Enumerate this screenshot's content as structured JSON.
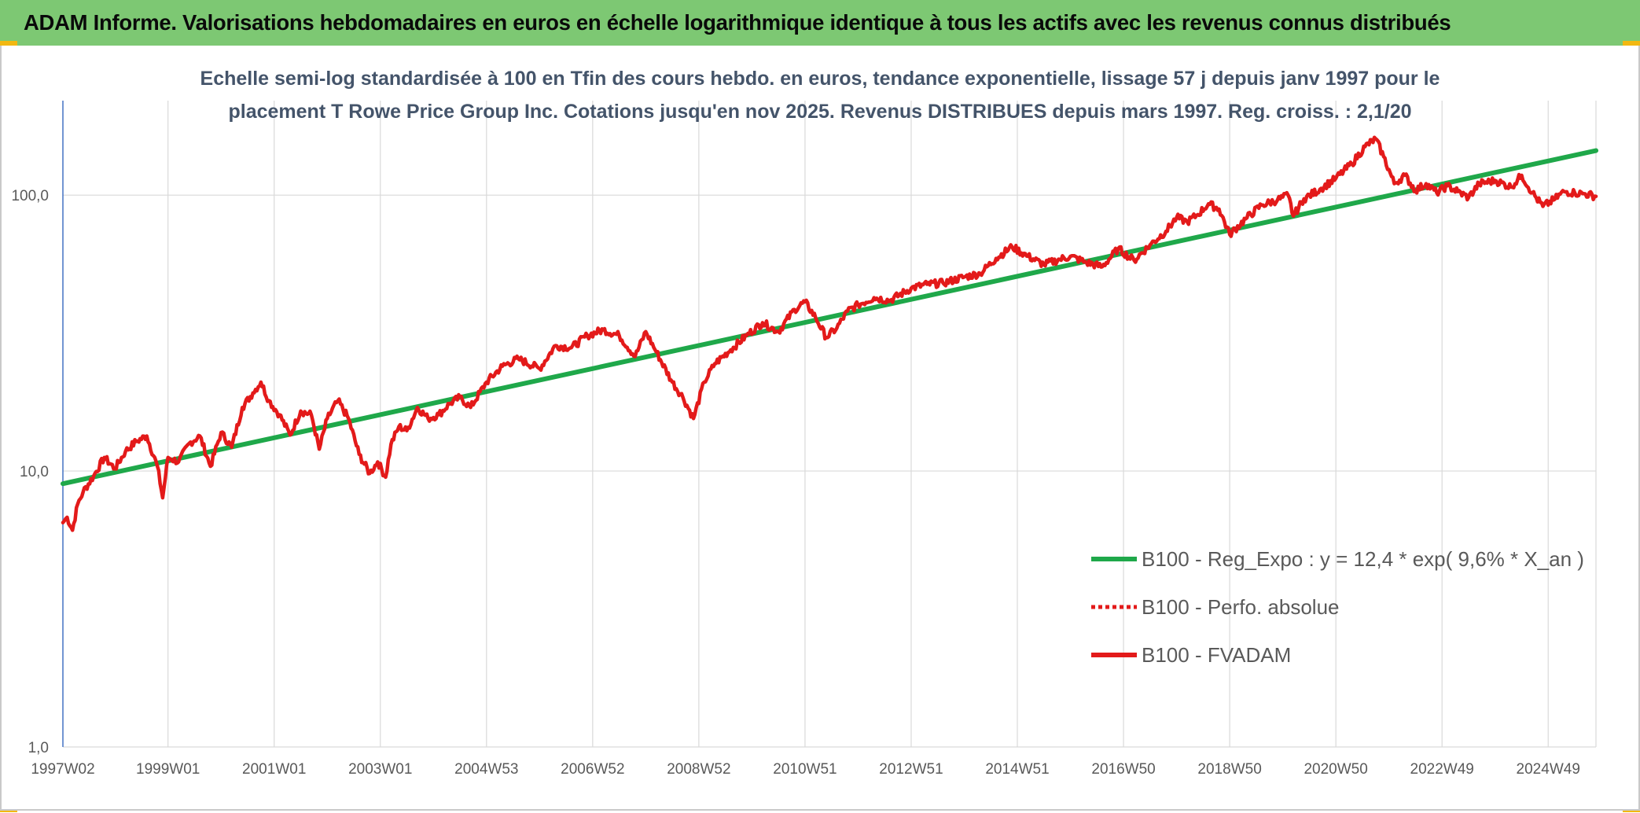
{
  "header": {
    "title": "ADAM Informe. Valorisations hebdomadaires en euros en échelle logarithmique identique à tous les actifs avec les revenus connus distribués"
  },
  "colors": {
    "banner": "#7dc873",
    "corner_accent": "#f2b811",
    "regression": "#1fa84a",
    "fvadam": "#e31a1a",
    "perfo": "#e31a1a",
    "grid": "#d9d9d9",
    "axis": "#4472c4"
  },
  "chart_data": {
    "type": "line",
    "title_lines": [
      "Echelle semi-log standardisée à 100 en Tfin des cours hebdo. en euros, tendance exponentielle, lissage 57 j depuis janv 1997 pour le",
      "placement T Rowe Price Group Inc. Cotations jusqu'en nov 2025. Revenus DISTRIBUES depuis mars 1997. Reg. croiss. : 2,1/20"
    ],
    "y_scale": "log",
    "ylim": [
      1,
      220
    ],
    "xlim": [
      1997.02,
      2025.9
    ],
    "grid": true,
    "legend_position": "lower-right",
    "y_ticks": [
      {
        "value": 1,
        "label": "1,0"
      },
      {
        "value": 10,
        "label": "10,0"
      },
      {
        "value": 100,
        "label": "100,0"
      }
    ],
    "x_ticks": [
      {
        "value": 1997.02,
        "label": "1997W02"
      },
      {
        "value": 1999.0,
        "label": "1999W01"
      },
      {
        "value": 2001.0,
        "label": "2001W01"
      },
      {
        "value": 2003.0,
        "label": "2003W01"
      },
      {
        "value": 2005.0,
        "label": "2004W53"
      },
      {
        "value": 2007.0,
        "label": "2006W52"
      },
      {
        "value": 2009.0,
        "label": "2008W52"
      },
      {
        "value": 2011.0,
        "label": "2010W51"
      },
      {
        "value": 2013.0,
        "label": "2012W51"
      },
      {
        "value": 2015.0,
        "label": "2014W51"
      },
      {
        "value": 2017.0,
        "label": "2016W50"
      },
      {
        "value": 2019.0,
        "label": "2018W50"
      },
      {
        "value": 2021.0,
        "label": "2020W50"
      },
      {
        "value": 2023.0,
        "label": "2022W49"
      },
      {
        "value": 2025.0,
        "label": "2024W49"
      }
    ],
    "series": [
      {
        "name": "B100 - Reg_Expo : y = 12,4 * exp( 9,6% * X_an )",
        "style": "solid-thick",
        "x": [
          1997.02,
          2025.9
        ],
        "y": [
          9.0,
          145.0
        ]
      },
      {
        "name": "B100 - Perfo. absolue",
        "style": "dotted",
        "x": [],
        "y": []
      },
      {
        "name": "B100 - FVADAM",
        "style": "solid",
        "x": [
          1997.02,
          1997.1,
          1997.2,
          1997.3,
          1997.4,
          1997.6,
          1997.8,
          1998.0,
          1998.2,
          1998.4,
          1998.6,
          1998.8,
          1998.9,
          1999.0,
          1999.2,
          1999.4,
          1999.6,
          1999.8,
          2000.0,
          2000.2,
          2000.4,
          2000.6,
          2000.75,
          2000.9,
          2001.1,
          2001.3,
          2001.5,
          2001.7,
          2001.85,
          2002.0,
          2002.2,
          2002.4,
          2002.6,
          2002.8,
          2002.95,
          2003.1,
          2003.2,
          2003.35,
          2003.5,
          2003.7,
          2003.9,
          2004.1,
          2004.3,
          2004.5,
          2004.7,
          2005.0,
          2005.3,
          2005.6,
          2006.0,
          2006.3,
          2006.6,
          2006.9,
          2007.2,
          2007.5,
          2007.8,
          2008.0,
          2008.2,
          2008.5,
          2008.7,
          2008.9,
          2009.1,
          2009.3,
          2009.6,
          2009.9,
          2010.2,
          2010.5,
          2010.8,
          2011.0,
          2011.2,
          2011.4,
          2011.6,
          2011.8,
          2012.0,
          2012.3,
          2012.6,
          2013.0,
          2013.3,
          2013.6,
          2014.0,
          2014.3,
          2014.6,
          2014.9,
          2015.2,
          2015.5,
          2015.8,
          2016.0,
          2016.3,
          2016.6,
          2016.9,
          2017.2,
          2017.5,
          2017.8,
          2018.0,
          2018.2,
          2018.4,
          2018.6,
          2018.8,
          2019.0,
          2019.3,
          2019.6,
          2019.9,
          2020.1,
          2020.2,
          2020.4,
          2020.7,
          2021.0,
          2021.3,
          2021.55,
          2021.75,
          2021.9,
          2022.1,
          2022.3,
          2022.5,
          2022.7,
          2022.9,
          2023.1,
          2023.3,
          2023.5,
          2023.7,
          2024.0,
          2024.3,
          2024.5,
          2024.7,
          2024.9,
          2025.1,
          2025.3,
          2025.5,
          2025.7,
          2025.9
        ],
        "y": [
          6.5,
          6.8,
          6.1,
          7.6,
          8.4,
          9.6,
          11.2,
          10.2,
          11.8,
          12.8,
          13.4,
          10.4,
          8.0,
          11.2,
          10.8,
          12.6,
          13.4,
          10.4,
          13.8,
          12.2,
          17.0,
          19.2,
          21.0,
          18.0,
          16.0,
          13.5,
          16.5,
          16.0,
          12.0,
          15.5,
          18.0,
          15.5,
          11.5,
          9.8,
          10.8,
          9.5,
          12.5,
          14.5,
          14.0,
          17.0,
          15.5,
          16.0,
          17.5,
          18.5,
          17.0,
          21.0,
          24.0,
          25.5,
          23.5,
          28.5,
          28.0,
          31.0,
          32.5,
          31.0,
          26.0,
          32.0,
          27.0,
          21.0,
          18.5,
          15.5,
          21.0,
          24.5,
          27.5,
          31.0,
          34.5,
          32.0,
          38.5,
          41.0,
          36.0,
          30.5,
          33.0,
          38.0,
          40.0,
          42.5,
          41.5,
          46.0,
          47.5,
          48.0,
          50.5,
          52.0,
          59.0,
          65.0,
          60.0,
          56.0,
          58.5,
          60.0,
          57.0,
          55.0,
          64.0,
          58.0,
          66.0,
          74.0,
          83.0,
          80.0,
          85.0,
          93.0,
          89.0,
          72.0,
          82.0,
          92.0,
          96.0,
          100.0,
          84.0,
          97.0,
          105.0,
          115.0,
          130.0,
          150.0,
          160.0,
          138.0,
          110.0,
          118.0,
          104.0,
          110.0,
          102.0,
          108.0,
          103.0,
          98.0,
          110.0,
          113.0,
          107.0,
          118.0,
          102.0,
          91.0,
          96.0,
          103.0,
          102.0,
          101.0,
          99.0
        ]
      }
    ]
  }
}
